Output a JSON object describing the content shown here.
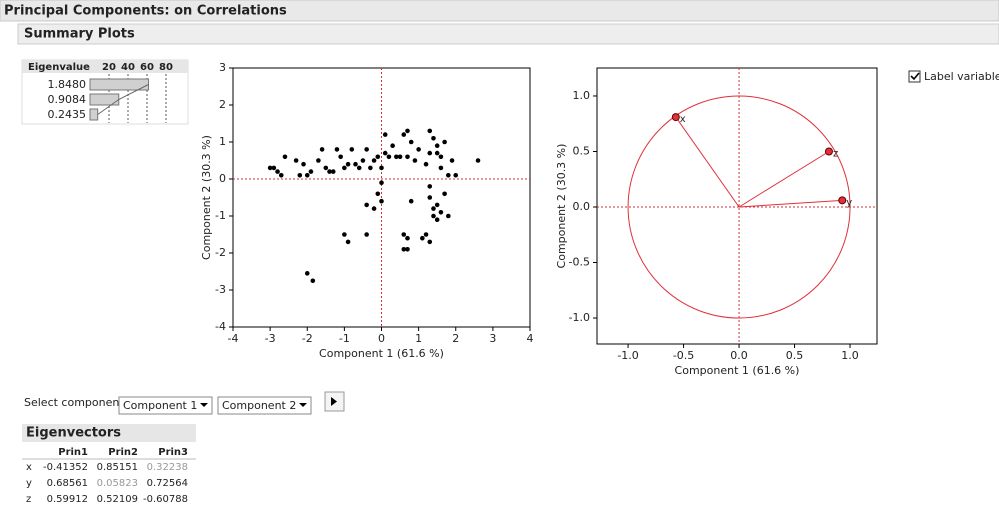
{
  "header": {
    "title": "Principal Components: on Correlations",
    "section": "Summary Plots"
  },
  "eigen_table": {
    "header": "Eigenvalue",
    "values": [
      "1.8480",
      "0.9084",
      "0.2435"
    ],
    "percents": [
      61.6,
      30.3,
      8.1
    ],
    "xlim": [
      0,
      100
    ],
    "xticks": [
      20,
      40,
      60,
      80
    ],
    "color": "#d0d0d0"
  },
  "chart_data": [
    {
      "type": "scatter",
      "xlabel": "Component 1  (61.6 %)",
      "ylabel": "Component 2  (30.3 %)",
      "xlim": [
        -4,
        4
      ],
      "ylim": [
        -4,
        3
      ],
      "xticks": [
        -4,
        -3,
        -2,
        -1,
        0,
        1,
        2,
        3,
        4
      ],
      "yticks": [
        -4,
        -3,
        -2,
        -1,
        0,
        1,
        2,
        3
      ],
      "color": "#000000",
      "x": [
        -3,
        -2.9,
        -2.8,
        -2.6,
        -2.7,
        -2.3,
        -2.2,
        -2.1,
        -2,
        -1.9,
        -1.7,
        -1.6,
        -1.5,
        -1.4,
        -1.3,
        -1.2,
        -1.1,
        -1,
        -0.9,
        -0.8,
        -0.7,
        -0.6,
        -0.5,
        -0.4,
        -0.3,
        -0.2,
        -0.1,
        0,
        0.1,
        0.1,
        0.2,
        0.3,
        0.4,
        0.5,
        0.6,
        0.7,
        0.7,
        0.8,
        0.9,
        1,
        1.2,
        1.3,
        1.3,
        1.4,
        1.5,
        1.6,
        1.7,
        1.8,
        1.9,
        2,
        2.6,
        1.5,
        1.6,
        0,
        -0.1,
        -0.2,
        0,
        -0.4,
        -1,
        -0.9,
        -0.4,
        0.6,
        0.7,
        0.7,
        0.6,
        1.1,
        1.2,
        1.3,
        1.3,
        1.4,
        1.4,
        1.5,
        1.5,
        1.6,
        1.7,
        1.8,
        0.8,
        1.3,
        -2,
        -1.85
      ],
      "y": [
        0.3,
        0.3,
        0.2,
        0.6,
        0.1,
        0.5,
        0.1,
        0.4,
        0.1,
        0.2,
        0.5,
        0.8,
        0.3,
        0.2,
        0.2,
        0.8,
        0.6,
        0.3,
        0.4,
        0.8,
        0.4,
        0.3,
        0.5,
        0.8,
        0.3,
        0.5,
        0.6,
        0.3,
        0.7,
        1.2,
        0.6,
        0.9,
        0.6,
        0.6,
        1.2,
        1.3,
        0.6,
        1.0,
        0.5,
        0.8,
        0.4,
        0.7,
        1.3,
        1.1,
        0.7,
        0.3,
        1.0,
        0.1,
        0.5,
        0.1,
        0.5,
        0.9,
        0.6,
        -0.1,
        -0.4,
        -0.8,
        -0.6,
        -0.7,
        -1.5,
        -1.7,
        -1.5,
        -1.5,
        -1.6,
        -1.9,
        -1.9,
        -1.6,
        -1.5,
        -1.7,
        -0.5,
        -0.8,
        -1.0,
        -0.7,
        -1.1,
        -0.9,
        -0.4,
        -1.0,
        -0.6,
        -0.2,
        -2.55,
        -2.75
      ]
    },
    {
      "type": "loading",
      "xlabel": "Component 1  (61.6 %)",
      "ylabel": "Component 2  (30.3 %)",
      "xlim": [
        -1.28,
        1.243
      ],
      "ylim": [
        -1.234,
        1.252
      ],
      "xticks": [
        {
          "value": -1,
          "label": "-1.0"
        },
        {
          "value": -0.5,
          "label": "-0.5"
        },
        {
          "value": 0,
          "label": "0.0"
        },
        {
          "value": 0.5,
          "label": "0.5"
        },
        {
          "value": 1,
          "label": "1.0"
        }
      ],
      "yticks": [
        {
          "value": -1,
          "label": "-1.0"
        },
        {
          "value": -0.5,
          "label": "-0.5"
        },
        {
          "value": 0,
          "label": "0.0"
        },
        {
          "value": 0.5,
          "label": "0.5"
        },
        {
          "value": 1,
          "label": "1.0"
        }
      ],
      "color": "#e0303a",
      "labels": [
        "x",
        "z",
        "y"
      ],
      "x": [
        -0.57,
        0.81,
        0.93
      ],
      "y": [
        0.81,
        0.5,
        0.06
      ]
    }
  ],
  "controls": {
    "label_variables": "Label variables",
    "select_component": "Select component",
    "dropdown1": "Component 1",
    "dropdown2": "Component 2"
  },
  "eigenvectors": {
    "title": "Eigenvectors",
    "columns": [
      "Prin1",
      "Prin2",
      "Prin3"
    ],
    "row_labels": [
      "x",
      "y",
      "z"
    ],
    "rows": [
      [
        "-0.41352",
        "0.85151",
        "0.32238"
      ],
      [
        "0.68561",
        "0.05823",
        "0.72564"
      ],
      [
        "0.59912",
        "0.52109",
        "-0.60788"
      ]
    ]
  }
}
